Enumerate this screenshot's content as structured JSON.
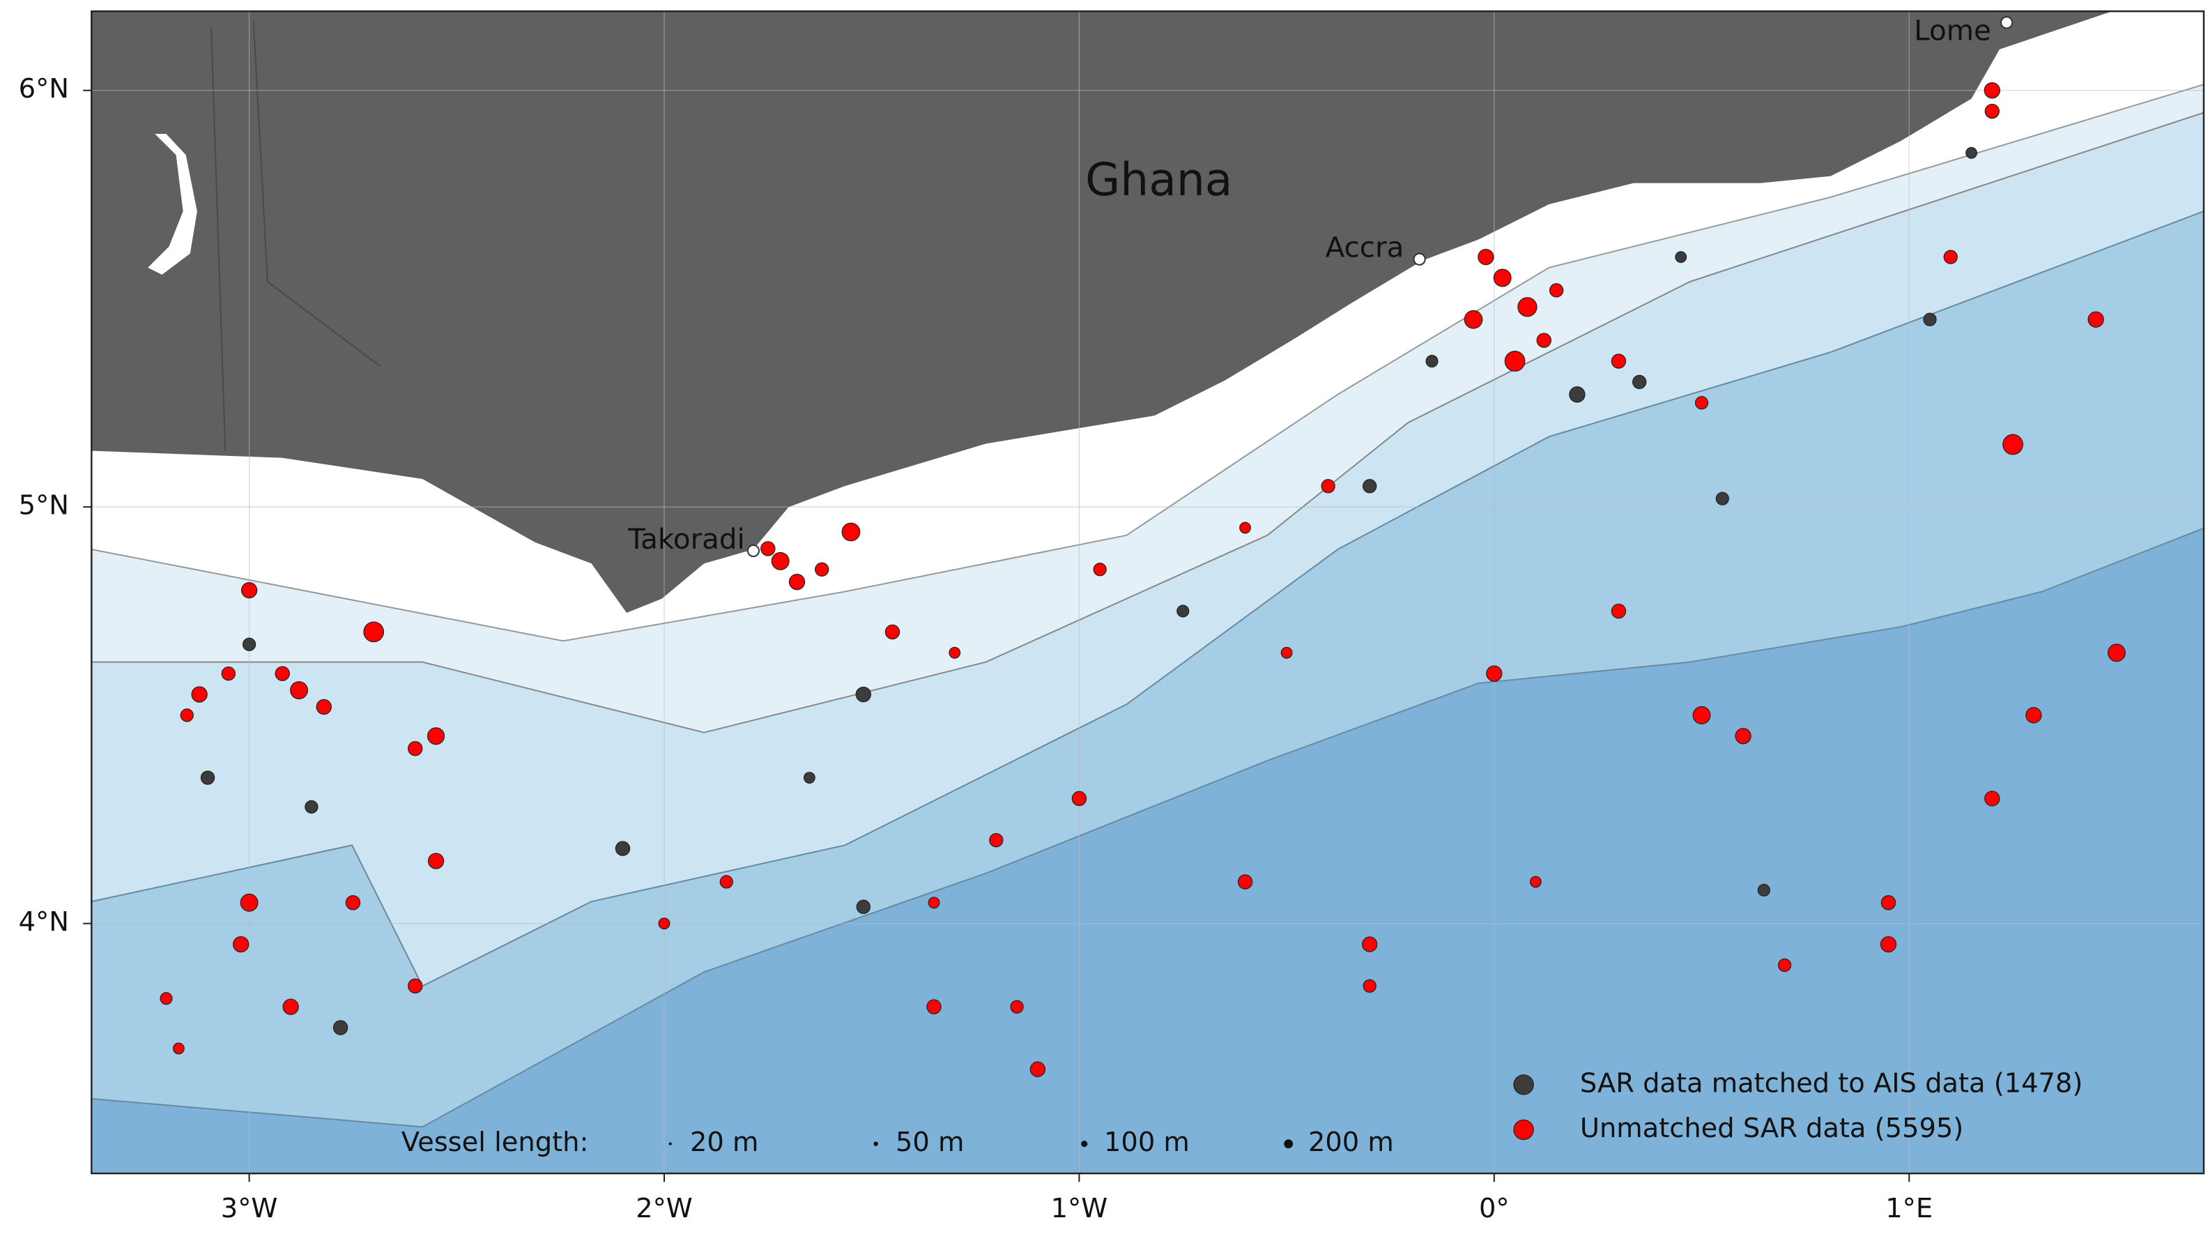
{
  "chart_data": {
    "type": "scatter",
    "country_label": "Ghana",
    "cities": [
      "Accra",
      "Takoradi",
      "Lome"
    ],
    "xlim": [
      -3.38,
      1.71
    ],
    "ylim": [
      3.4,
      6.19
    ],
    "xticks": [
      {
        "value": -3,
        "label": "3°W"
      },
      {
        "value": -2,
        "label": "2°W"
      },
      {
        "value": -1,
        "label": "1°W"
      },
      {
        "value": 0,
        "label": "0°"
      },
      {
        "value": 1,
        "label": "1°E"
      }
    ],
    "yticks": [
      {
        "value": 4,
        "label": "4°N"
      },
      {
        "value": 5,
        "label": "5°N"
      },
      {
        "value": 6,
        "label": "6°N"
      }
    ],
    "grid": true,
    "size_legend_title": "Vessel length:",
    "size_legend": [
      {
        "value": 20,
        "label": "20 m"
      },
      {
        "value": 50,
        "label": "50 m"
      },
      {
        "value": 100,
        "label": "100 m"
      },
      {
        "value": 200,
        "label": "200 m"
      }
    ],
    "legend_position": "lower right",
    "series": [
      {
        "name": "Unmatched SAR data (5595)",
        "color": "#ff0000",
        "x": [
          0.02,
          0.08,
          -0.02,
          0.12,
          0.05,
          0.15,
          -0.05,
          -1.72,
          -1.68,
          -1.75,
          -1.62,
          -1.55,
          -3.12,
          -3.05,
          -3.15,
          -2.88,
          -2.82,
          -2.92,
          -2.55,
          -2.6,
          -2.7,
          -3.0,
          -1.45,
          -1.3,
          -0.95,
          -0.6,
          -0.4,
          0.3,
          0.5,
          1.2,
          1.2,
          1.1,
          1.25,
          1.45,
          1.5,
          1.3,
          1.2,
          0.95,
          0.95,
          0.5,
          0.6,
          0.3,
          0.0,
          -0.3,
          -0.3,
          -0.6,
          -1.1,
          -1.15,
          -1.35,
          -1.35,
          -1.2,
          -1.85,
          -2.0,
          -2.55,
          -2.6,
          -2.9,
          -3.0,
          -3.02,
          -3.2,
          -3.17,
          -2.75,
          -1.0,
          -0.5,
          0.1,
          0.7
        ],
        "y": [
          5.55,
          5.48,
          5.6,
          5.4,
          5.35,
          5.52,
          5.45,
          4.87,
          4.82,
          4.9,
          4.85,
          4.94,
          4.55,
          4.6,
          4.5,
          4.56,
          4.52,
          4.6,
          4.45,
          4.42,
          4.7,
          4.8,
          4.7,
          4.65,
          4.85,
          4.95,
          5.05,
          5.35,
          5.25,
          6.0,
          5.95,
          5.6,
          5.15,
          5.45,
          4.65,
          4.5,
          4.3,
          4.05,
          3.95,
          4.5,
          4.45,
          4.75,
          4.6,
          3.95,
          3.85,
          4.1,
          3.65,
          3.8,
          3.8,
          4.05,
          4.2,
          4.1,
          4.0,
          4.15,
          3.85,
          3.8,
          4.05,
          3.95,
          3.82,
          3.7,
          4.05,
          4.3,
          4.65,
          4.1,
          3.9
        ],
        "sizes": [
          150,
          180,
          120,
          100,
          200,
          90,
          160,
          150,
          120,
          100,
          90,
          160,
          120,
          90,
          80,
          150,
          110,
          100,
          140,
          100,
          200,
          120,
          100,
          60,
          80,
          60,
          90,
          100,
          80,
          120,
          100,
          90,
          200,
          120,
          150,
          120,
          110,
          100,
          120,
          150,
          120,
          100,
          120,
          110,
          80,
          100,
          110,
          80,
          100,
          60,
          90,
          80,
          60,
          120,
          100,
          120,
          150,
          120,
          70,
          60,
          100,
          100,
          60,
          60,
          80
        ]
      },
      {
        "name": "SAR data matched to AIS data (1478)",
        "color": "#3c3c3c",
        "x": [
          -3.0,
          -2.78,
          -2.1,
          -1.52,
          -1.52,
          -1.65,
          -0.75,
          0.65,
          0.55,
          0.2,
          0.35,
          -0.3,
          1.05,
          1.15,
          -2.85,
          -3.1,
          -0.15,
          0.45
        ],
        "y": [
          4.67,
          3.75,
          4.18,
          4.04,
          4.55,
          4.35,
          4.75,
          4.08,
          5.02,
          5.27,
          5.3,
          5.05,
          5.45,
          5.85,
          4.28,
          4.35,
          5.35,
          5.6
        ],
        "sizes": [
          80,
          100,
          100,
          90,
          110,
          60,
          70,
          70,
          80,
          120,
          90,
          90,
          80,
          60,
          80,
          90,
          70,
          60
        ]
      }
    ]
  }
}
